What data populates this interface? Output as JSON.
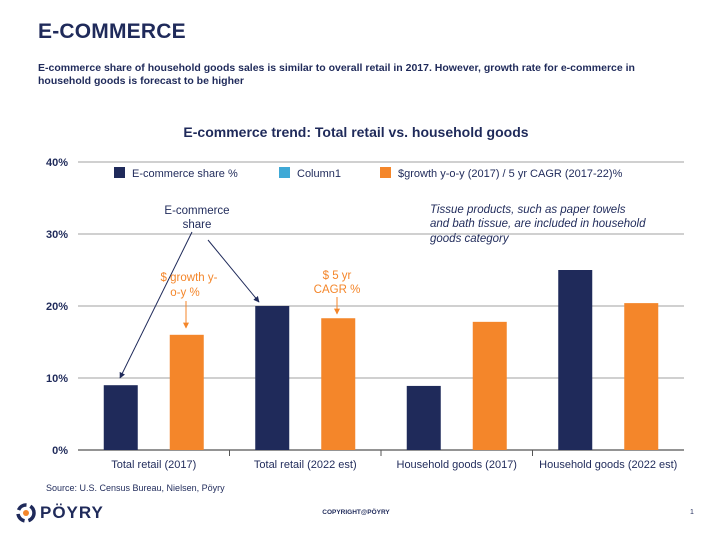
{
  "slide": {
    "title": "E-COMMERCE",
    "subtitle": "E-commerce share of household goods sales is similar to overall retail in 2017.  However, growth rate for e-commerce in household goods is forecast to be higher",
    "source": "Source: U.S. Census Bureau, Nielsen, Pöyry",
    "copyright": "COPYRIGHT@PÖYRY",
    "page_number": "1",
    "logo_text": "PÖYRY"
  },
  "annotations": {
    "ecom_share": "E-commerce share",
    "growth_yoy": "$ growth y-o-y %",
    "cagr": "$ 5 yr CAGR %",
    "tissue_note": "Tissue products, such as paper towels and bath tissue, are included in household goods category"
  },
  "colors": {
    "navy": "#1f2a5a",
    "orange": "#f4862a",
    "light_blue": "#3fa9d6",
    "grid": "#808080"
  },
  "chart_data": {
    "type": "bar",
    "title": "E-commerce trend:  Total retail vs. household goods",
    "categories": [
      "Total retail (2017)",
      "Total retail (2022 est)",
      "Household goods (2017)",
      "Household goods (2022 est)"
    ],
    "series": [
      {
        "name": "E-commerce share %",
        "color": "#1f2a5a",
        "values": [
          9,
          20,
          8.9,
          25
        ]
      },
      {
        "name": "Column1",
        "color": "#3fa9d6",
        "values": [
          null,
          null,
          null,
          null
        ]
      },
      {
        "name": "$growth y-o-y (2017) / 5 yr CAGR (2017-22)%",
        "color": "#f4862a",
        "values": [
          16,
          18.3,
          17.8,
          20.4
        ]
      }
    ],
    "yticks": [
      "0%",
      "10%",
      "20%",
      "30%",
      "40%"
    ],
    "ylim": [
      0,
      40
    ],
    "grid": true,
    "legend": "top"
  }
}
